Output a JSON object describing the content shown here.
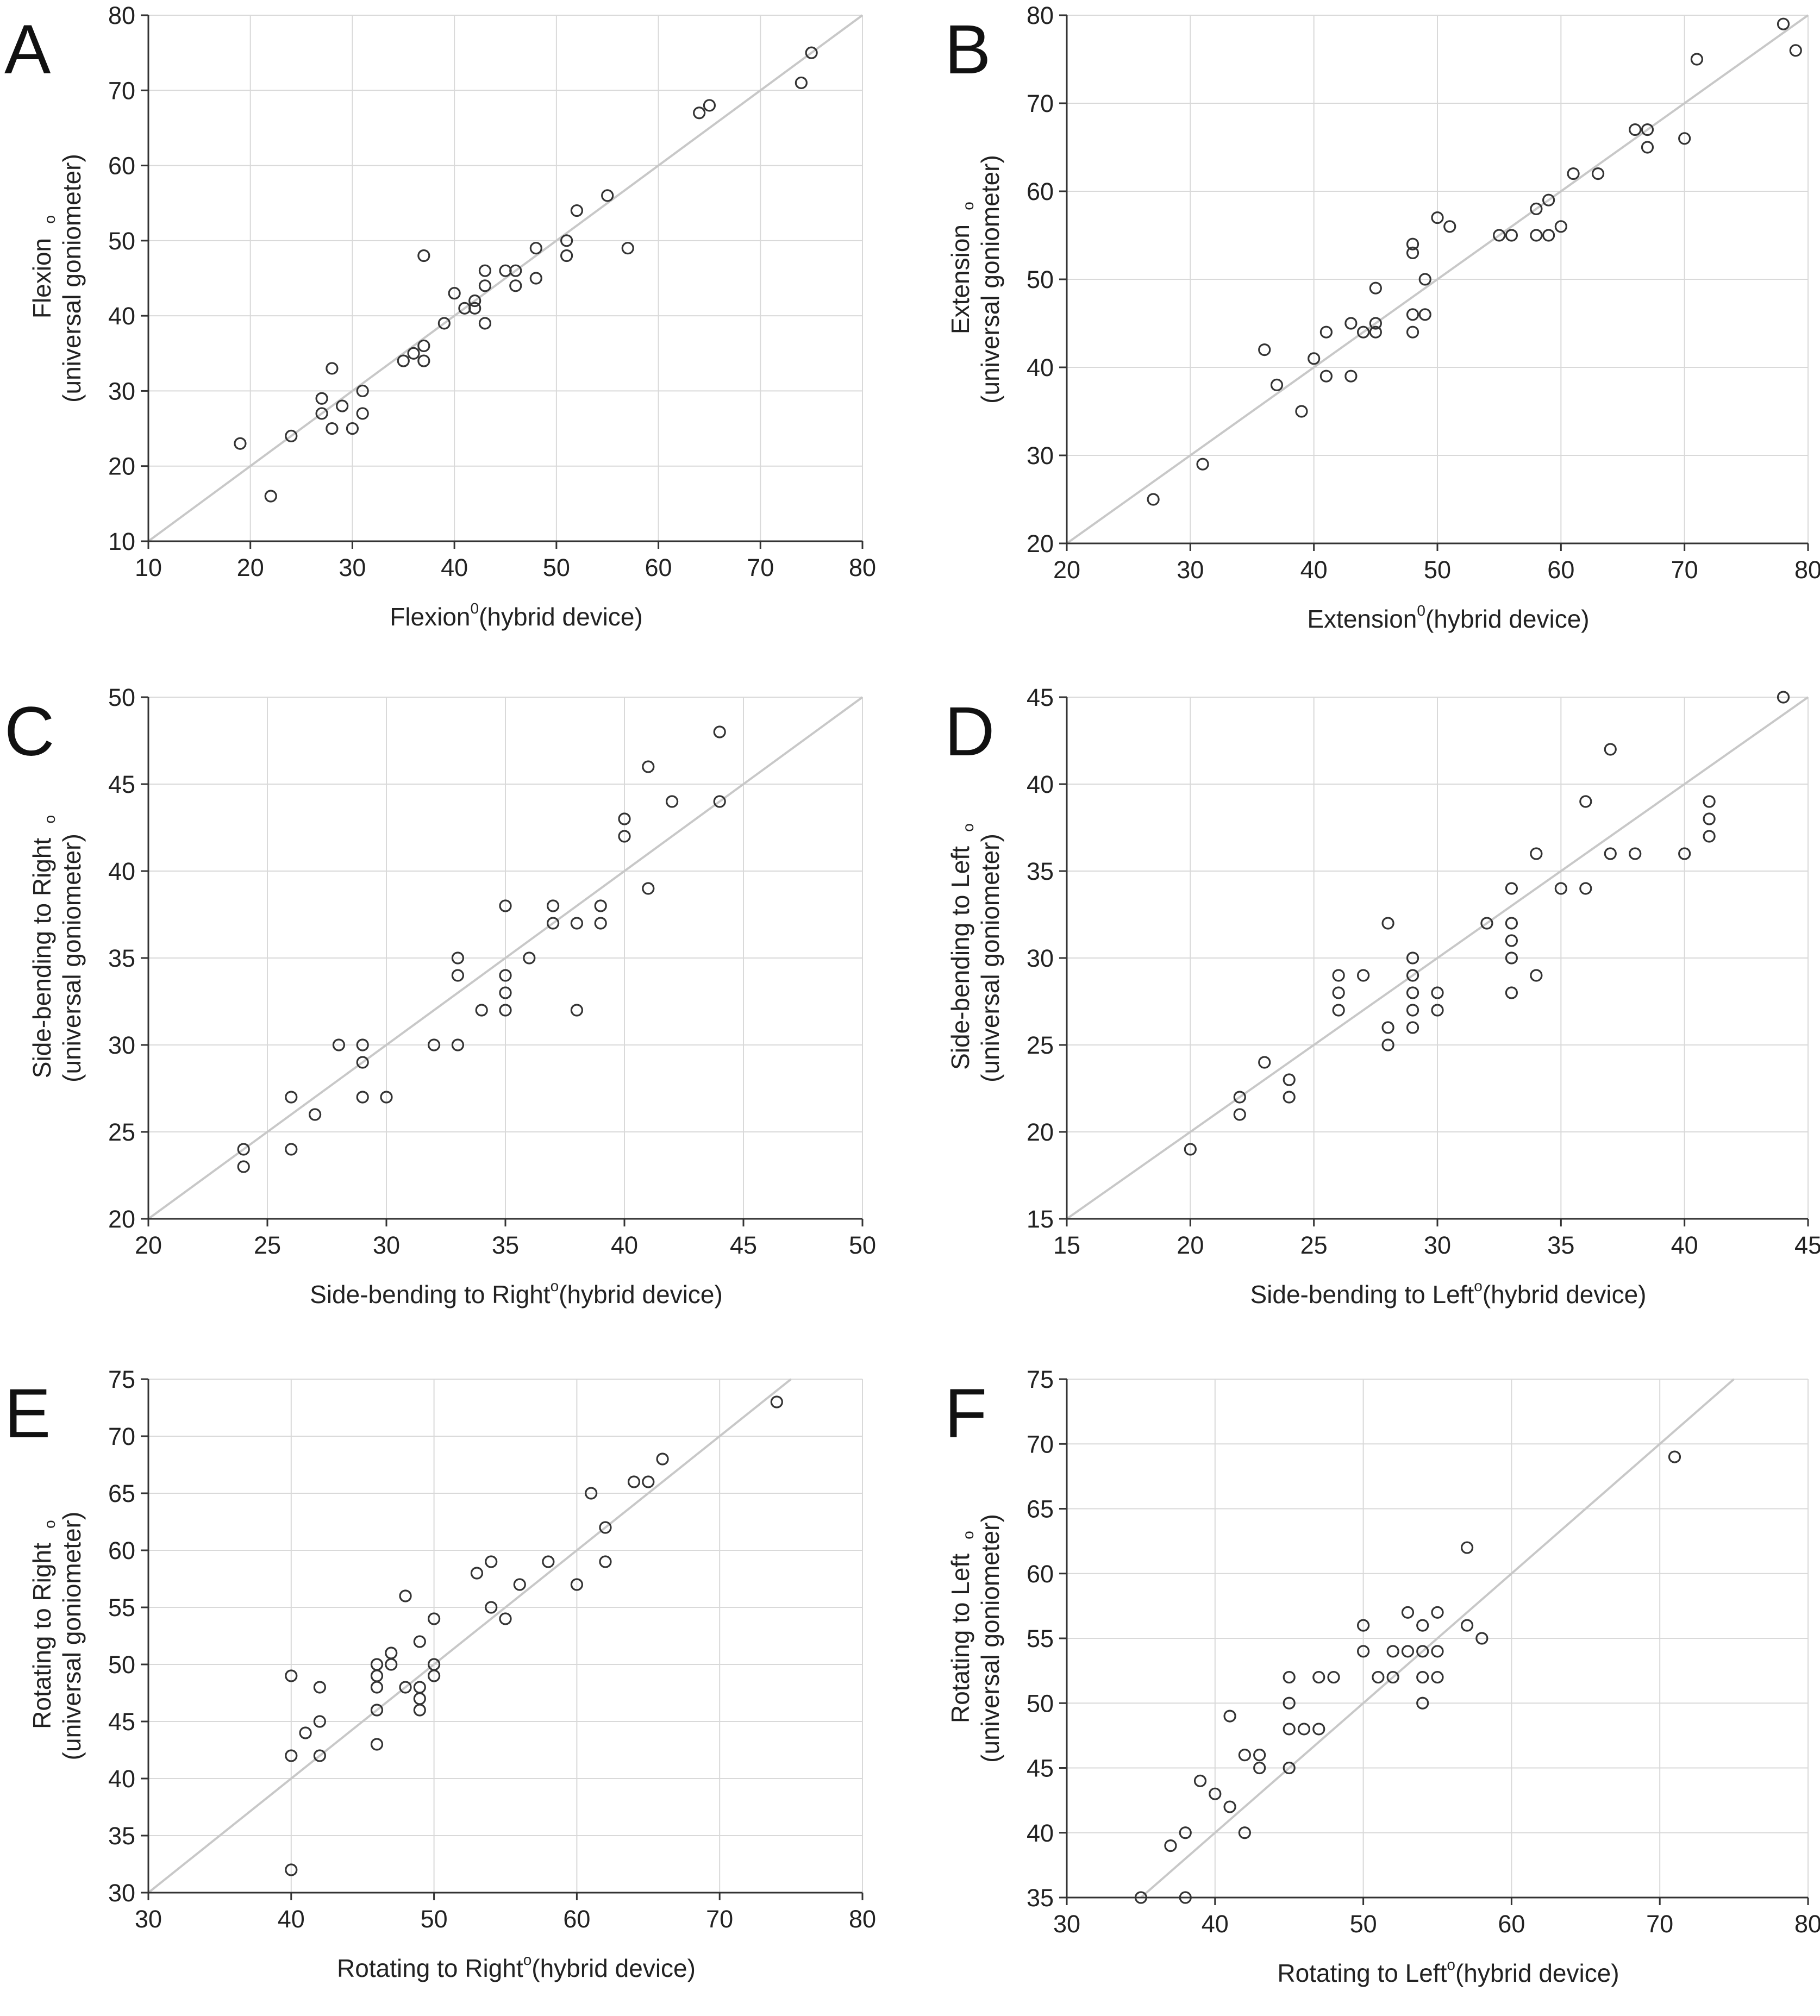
{
  "chart_data": [
    {
      "panel": "A",
      "type": "scatter",
      "xlabel_text": "Flexion",
      "xlabel_sup": "0",
      "xlabel_rest": "(hybrid device)",
      "ylabel_line1": "Flexion",
      "ylabel_line2": "(universal goniometer)",
      "ylabel_degree": "o",
      "xlim": [
        10,
        80
      ],
      "ylim": [
        10,
        80
      ],
      "xticks": [
        10,
        20,
        30,
        40,
        50,
        60,
        70,
        80
      ],
      "yticks": [
        10,
        20,
        30,
        40,
        50,
        60,
        70,
        80
      ],
      "x": [
        19,
        22,
        24,
        27,
        27,
        28,
        28,
        29,
        30,
        31,
        31,
        35,
        36,
        37,
        37,
        37,
        39,
        40,
        41,
        42,
        42,
        43,
        43,
        43,
        45,
        46,
        46,
        48,
        48,
        51,
        51,
        52,
        55,
        57,
        64,
        65,
        74,
        75
      ],
      "y": [
        23,
        16,
        24,
        27,
        29,
        25,
        33,
        28,
        25,
        27,
        30,
        34,
        35,
        34,
        36,
        48,
        39,
        43,
        41,
        42,
        41,
        44,
        46,
        39,
        46,
        46,
        44,
        45,
        49,
        48,
        50,
        54,
        56,
        49,
        67,
        68,
        71,
        75
      ]
    },
    {
      "panel": "B",
      "type": "scatter",
      "xlabel_text": "Extension",
      "xlabel_sup": "0",
      "xlabel_rest": "(hybrid device)",
      "ylabel_line1": "Extension",
      "ylabel_line2": "(universal goniometer)",
      "ylabel_degree": "o",
      "xlim": [
        20,
        80
      ],
      "ylim": [
        20,
        80
      ],
      "xticks": [
        20,
        30,
        40,
        50,
        60,
        70,
        80
      ],
      "yticks": [
        20,
        30,
        40,
        50,
        60,
        70,
        80
      ],
      "x": [
        27,
        31,
        36,
        37,
        39,
        40,
        41,
        41,
        43,
        43,
        44,
        45,
        45,
        45,
        48,
        48,
        48,
        48,
        49,
        49,
        50,
        51,
        55,
        56,
        58,
        58,
        59,
        59,
        60,
        61,
        63,
        66,
        67,
        67,
        70,
        71,
        78,
        79
      ],
      "y": [
        25,
        29,
        42,
        38,
        35,
        41,
        44,
        39,
        39,
        45,
        44,
        49,
        44,
        45,
        53,
        54,
        46,
        44,
        46,
        50,
        57,
        56,
        55,
        55,
        58,
        55,
        59,
        55,
        56,
        62,
        62,
        67,
        67,
        65,
        66,
        75,
        79,
        76
      ]
    },
    {
      "panel": "C",
      "type": "scatter",
      "xlabel_text": "Side-bending to Right",
      "xlabel_sup": "o",
      "xlabel_rest": "(hybrid device)",
      "ylabel_line1": "Side-bending to Right",
      "ylabel_line2": "(universal goniometer)",
      "ylabel_degree": "o",
      "xlim": [
        20,
        50
      ],
      "ylim": [
        20,
        50
      ],
      "xticks": [
        20,
        25,
        30,
        35,
        40,
        45,
        50
      ],
      "yticks": [
        20,
        25,
        30,
        35,
        40,
        45,
        50
      ],
      "x": [
        24,
        24,
        26,
        26,
        27,
        28,
        29,
        29,
        29,
        30,
        32,
        33,
        33,
        33,
        34,
        35,
        35,
        35,
        35,
        36,
        37,
        37,
        38,
        38,
        39,
        39,
        40,
        40,
        41,
        41,
        42,
        44,
        44
      ],
      "y": [
        23,
        24,
        24,
        27,
        26,
        30,
        27,
        29,
        30,
        27,
        30,
        30,
        34,
        35,
        32,
        32,
        33,
        34,
        38,
        35,
        37,
        38,
        37,
        32,
        37,
        38,
        42,
        43,
        39,
        46,
        44,
        44,
        48
      ]
    },
    {
      "panel": "D",
      "type": "scatter",
      "xlabel_text": "Side-bending to Left",
      "xlabel_sup": "o",
      "xlabel_rest": "(hybrid device)",
      "ylabel_line1": "Side-bending to Left",
      "ylabel_line2": "(universal goniometer)",
      "ylabel_degree": "o",
      "xlim": [
        15,
        45
      ],
      "ylim": [
        15,
        45
      ],
      "xticks": [
        15,
        20,
        25,
        30,
        35,
        40,
        45
      ],
      "yticks": [
        15,
        20,
        25,
        30,
        35,
        40,
        45
      ],
      "x": [
        20,
        22,
        22,
        23,
        24,
        24,
        26,
        26,
        26,
        27,
        28,
        28,
        28,
        29,
        29,
        29,
        29,
        29,
        30,
        30,
        32,
        33,
        33,
        33,
        33,
        33,
        34,
        34,
        35,
        36,
        36,
        37,
        37,
        38,
        40,
        41,
        41,
        41,
        44
      ],
      "y": [
        19,
        21,
        22,
        24,
        22,
        23,
        27,
        28,
        29,
        29,
        25,
        26,
        32,
        26,
        27,
        28,
        29,
        30,
        27,
        28,
        32,
        28,
        30,
        31,
        32,
        34,
        29,
        36,
        34,
        34,
        39,
        36,
        42,
        36,
        36,
        37,
        38,
        39,
        45
      ]
    },
    {
      "panel": "E",
      "type": "scatter",
      "xlabel_text": "Rotating to Right",
      "xlabel_sup": "o",
      "xlabel_rest": "(hybrid device)",
      "ylabel_line1": "Rotating to Right",
      "ylabel_line2": "(universal goniometer)",
      "ylabel_degree": "o",
      "xlim": [
        30,
        80
      ],
      "ylim": [
        30,
        75
      ],
      "xticks": [
        30,
        40,
        50,
        60,
        70,
        80
      ],
      "yticks": [
        30,
        35,
        40,
        45,
        50,
        55,
        60,
        65,
        70,
        75
      ],
      "x": [
        40,
        40,
        40,
        41,
        42,
        42,
        42,
        46,
        46,
        46,
        46,
        46,
        47,
        47,
        48,
        48,
        49,
        49,
        49,
        49,
        50,
        50,
        50,
        53,
        54,
        54,
        55,
        56,
        58,
        60,
        61,
        62,
        62,
        64,
        65,
        66,
        74
      ],
      "y": [
        32,
        42,
        49,
        44,
        42,
        45,
        48,
        43,
        46,
        48,
        49,
        50,
        50,
        51,
        48,
        56,
        46,
        47,
        48,
        52,
        49,
        50,
        54,
        58,
        55,
        59,
        54,
        57,
        59,
        57,
        65,
        59,
        62,
        66,
        66,
        68,
        73
      ]
    },
    {
      "panel": "F",
      "type": "scatter",
      "xlabel_text": "Rotating to Left",
      "xlabel_sup": "o",
      "xlabel_rest": "(hybrid device)",
      "ylabel_line1": "Rotating to Left",
      "ylabel_line2": "(universal goniometer)",
      "ylabel_degree": "o",
      "xlim": [
        30,
        80
      ],
      "ylim": [
        35,
        75
      ],
      "xticks": [
        30,
        40,
        50,
        60,
        70,
        80
      ],
      "yticks": [
        35,
        40,
        45,
        50,
        55,
        60,
        65,
        70,
        75
      ],
      "x": [
        35,
        37,
        38,
        38,
        39,
        40,
        41,
        41,
        42,
        42,
        43,
        43,
        45,
        45,
        45,
        45,
        46,
        47,
        47,
        48,
        50,
        50,
        51,
        52,
        52,
        53,
        53,
        54,
        54,
        54,
        54,
        55,
        55,
        55,
        57,
        57,
        58,
        71
      ],
      "y": [
        35,
        39,
        35,
        40,
        44,
        43,
        42,
        49,
        40,
        46,
        45,
        46,
        45,
        48,
        50,
        52,
        48,
        48,
        52,
        52,
        54,
        56,
        52,
        52,
        54,
        54,
        57,
        50,
        52,
        54,
        56,
        52,
        54,
        57,
        56,
        62,
        55,
        69
      ]
    }
  ]
}
